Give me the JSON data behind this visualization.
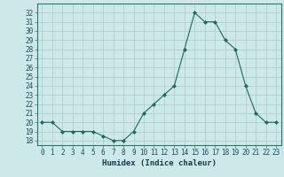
{
  "x": [
    0,
    1,
    2,
    3,
    4,
    5,
    6,
    7,
    8,
    9,
    10,
    11,
    12,
    13,
    14,
    15,
    16,
    17,
    18,
    19,
    20,
    21,
    22,
    23
  ],
  "y": [
    20,
    20,
    19,
    19,
    19,
    19,
    18.5,
    18,
    18,
    19,
    21,
    22,
    23,
    24,
    28,
    32,
    31,
    31,
    29,
    28,
    24,
    21,
    20,
    20
  ],
  "line_color": "#1a6b5a",
  "marker_color": "#1a6b5a",
  "bg_color": "#cce8e8",
  "grid_color": "#aacccc",
  "xlabel": "Humidex (Indice chaleur)",
  "xlim": [
    -0.5,
    23.5
  ],
  "ylim": [
    17.5,
    33.0
  ],
  "yticks": [
    18,
    19,
    20,
    21,
    22,
    23,
    24,
    25,
    26,
    27,
    28,
    29,
    30,
    31,
    32
  ],
  "xticks": [
    0,
    1,
    2,
    3,
    4,
    5,
    6,
    7,
    8,
    9,
    10,
    11,
    12,
    13,
    14,
    15,
    16,
    17,
    18,
    19,
    20,
    21,
    22,
    23
  ],
  "tick_fontsize": 5.5,
  "label_fontsize": 6.5
}
